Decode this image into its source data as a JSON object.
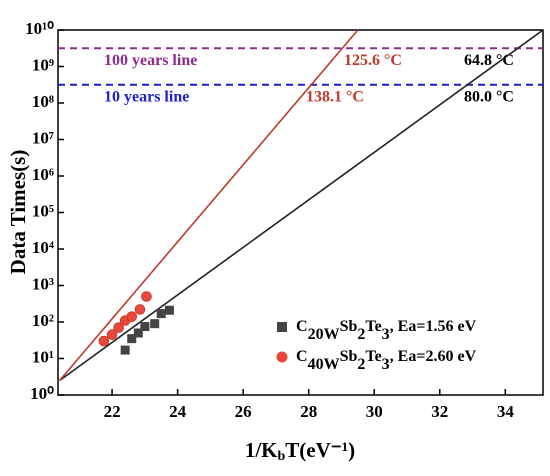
{
  "chart_data": {
    "type": "scatter",
    "xlabel": "1/KbT(eV⁻¹)",
    "ylabel": "Data Times(s)",
    "xlim": [
      20.35,
      35.15
    ],
    "ylim": [
      1,
      10000000000
    ],
    "log_y": true,
    "xticks": [
      22,
      24,
      26,
      28,
      30,
      32,
      34
    ],
    "yticks": [
      {
        "value": 1,
        "label": "10⁰"
      },
      {
        "value": 10,
        "label": "10¹"
      },
      {
        "value": 100,
        "label": "10²"
      },
      {
        "value": 1000,
        "label": "10³"
      },
      {
        "value": 10000,
        "label": "10⁴"
      },
      {
        "value": 100000,
        "label": "10⁵"
      },
      {
        "value": 1000000,
        "label": "10⁶"
      },
      {
        "value": 10000000,
        "label": "10⁷"
      },
      {
        "value": 100000000,
        "label": "10⁸"
      },
      {
        "value": 1000000000,
        "label": "10⁹"
      },
      {
        "value": 10000000000,
        "label": "10¹⁰"
      }
    ],
    "legend": "lower right",
    "series": [
      {
        "name": "C20WSb2Te3, Ea=1.56 eV",
        "color": "#444444",
        "marker": "square",
        "x": [
          22.4,
          22.6,
          22.8,
          23.0,
          23.3,
          23.5,
          23.75
        ],
        "values": [
          17,
          35,
          50,
          75,
          90,
          170,
          210
        ],
        "fit": {
          "x": [
            20.4,
            35.15
          ],
          "values": [
            2.5,
            10000000000
          ]
        }
      },
      {
        "name": "C40WSb2Te3, Ea=2.60 eV",
        "color": "#e8483c",
        "marker": "circle",
        "x": [
          21.75,
          22.0,
          22.2,
          22.4,
          22.6,
          22.85,
          23.05
        ],
        "values": [
          30,
          45,
          70,
          110,
          140,
          220,
          500
        ],
        "fit": {
          "x": [
            20.4,
            29.5
          ],
          "values": [
            2.5,
            10000000000
          ],
          "color": "#c0392b"
        }
      }
    ],
    "hlines": [
      {
        "value": 3150000000,
        "color": "#8e2c8e",
        "label": "100 years line",
        "red": "125.6 °C",
        "black": "64.8 °C"
      },
      {
        "value": 315000000,
        "color": "#1f1fd0",
        "label": "10 years line",
        "red": "138.1 °C",
        "black": "80.0 °C"
      }
    ]
  }
}
